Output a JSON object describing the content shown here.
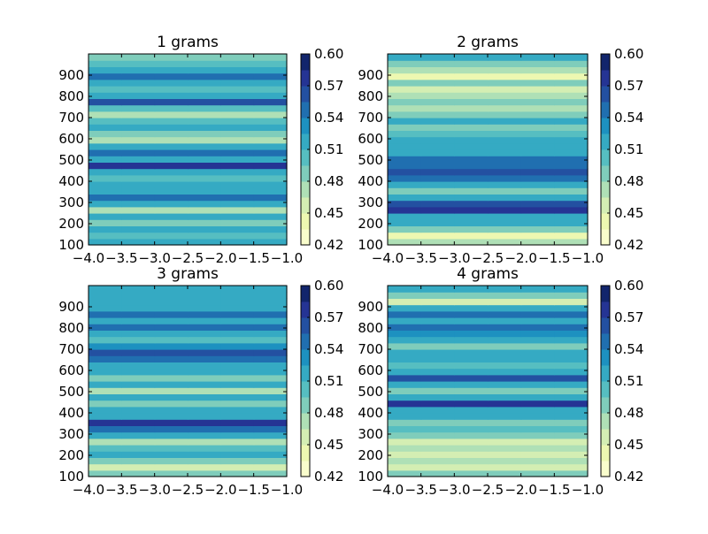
{
  "chart_data": [
    {
      "type": "heatmap",
      "title": "1 grams",
      "xlim": [
        -4.0,
        -1.0
      ],
      "ylim": [
        100,
        1000
      ],
      "xticks": [
        "−4.0",
        "−3.5",
        "−3.0",
        "−2.5",
        "−2.0",
        "−1.5",
        "−1.0"
      ],
      "yticks": [
        "100",
        "200",
        "300",
        "400",
        "500",
        "600",
        "700",
        "800",
        "900"
      ],
      "colorbar_ticks": [
        "0.42",
        "0.45",
        "0.48",
        "0.51",
        "0.54",
        "0.57",
        "0.60"
      ],
      "colorbar_range": [
        0.42,
        0.6
      ],
      "colormap": "YlGnBu",
      "x_columns": [
        -4.0,
        -3.5,
        -3.0,
        -2.5,
        -2.0,
        -1.5
      ],
      "y_rows": [
        100,
        130,
        160,
        190,
        220,
        250,
        280,
        310,
        340,
        370,
        400,
        430,
        460,
        490,
        520,
        550,
        580,
        610,
        640,
        670,
        700,
        730,
        760,
        790,
        820,
        850,
        880,
        910,
        940,
        970
      ],
      "z": [
        [
          0.52,
          0.52,
          0.52,
          0.52,
          0.52,
          0.52
        ],
        [
          0.5,
          0.5,
          0.5,
          0.5,
          0.5,
          0.5
        ],
        [
          0.52,
          0.52,
          0.52,
          0.52,
          0.52,
          0.52
        ],
        [
          0.49,
          0.49,
          0.49,
          0.49,
          0.49,
          0.49
        ],
        [
          0.52,
          0.52,
          0.52,
          0.52,
          0.52,
          0.52
        ],
        [
          0.47,
          0.47,
          0.47,
          0.47,
          0.47,
          0.47
        ],
        [
          0.51,
          0.51,
          0.51,
          0.51,
          0.51,
          0.51
        ],
        [
          0.54,
          0.54,
          0.54,
          0.54,
          0.54,
          0.54
        ],
        [
          0.51,
          0.51,
          0.51,
          0.51,
          0.51,
          0.51
        ],
        [
          0.52,
          0.52,
          0.52,
          0.52,
          0.52,
          0.52
        ],
        [
          0.5,
          0.5,
          0.5,
          0.5,
          0.5,
          0.5
        ],
        [
          0.52,
          0.52,
          0.52,
          0.52,
          0.52,
          0.52
        ],
        [
          0.58,
          0.58,
          0.58,
          0.58,
          0.58,
          0.58
        ],
        [
          0.52,
          0.52,
          0.52,
          0.52,
          0.52,
          0.52
        ],
        [
          0.54,
          0.54,
          0.54,
          0.54,
          0.54,
          0.54
        ],
        [
          0.52,
          0.52,
          0.52,
          0.52,
          0.52,
          0.52
        ],
        [
          0.47,
          0.47,
          0.47,
          0.47,
          0.47,
          0.47
        ],
        [
          0.49,
          0.49,
          0.49,
          0.49,
          0.49,
          0.49
        ],
        [
          0.52,
          0.52,
          0.52,
          0.52,
          0.52,
          0.52
        ],
        [
          0.5,
          0.5,
          0.5,
          0.5,
          0.5,
          0.5
        ],
        [
          0.47,
          0.47,
          0.47,
          0.47,
          0.47,
          0.47
        ],
        [
          0.5,
          0.5,
          0.5,
          0.5,
          0.5,
          0.5
        ],
        [
          0.57,
          0.57,
          0.57,
          0.57,
          0.57,
          0.57
        ],
        [
          0.52,
          0.52,
          0.52,
          0.52,
          0.52,
          0.52
        ],
        [
          0.5,
          0.5,
          0.5,
          0.5,
          0.5,
          0.5
        ],
        [
          0.52,
          0.52,
          0.52,
          0.52,
          0.52,
          0.52
        ],
        [
          0.55,
          0.55,
          0.55,
          0.55,
          0.55,
          0.55
        ],
        [
          0.52,
          0.52,
          0.52,
          0.52,
          0.52,
          0.52
        ],
        [
          0.5,
          0.5,
          0.5,
          0.5,
          0.5,
          0.5
        ],
        [
          0.48,
          0.48,
          0.48,
          0.48,
          0.48,
          0.48
        ]
      ]
    },
    {
      "type": "heatmap",
      "title": "2 grams",
      "xlim": [
        -4.0,
        -1.0
      ],
      "ylim": [
        100,
        1000
      ],
      "xticks": [
        "−4.0",
        "−3.5",
        "−3.0",
        "−2.5",
        "−2.0",
        "−1.5",
        "−1.0"
      ],
      "yticks": [
        "100",
        "200",
        "300",
        "400",
        "500",
        "600",
        "700",
        "800",
        "900"
      ],
      "colorbar_ticks": [
        "0.42",
        "0.45",
        "0.48",
        "0.51",
        "0.54",
        "0.57",
        "0.60"
      ],
      "colorbar_range": [
        0.42,
        0.6
      ],
      "colormap": "YlGnBu",
      "x_columns": [
        -4.0,
        -3.5,
        -3.0,
        -2.5,
        -2.0,
        -1.5
      ],
      "y_rows": [
        100,
        130,
        160,
        190,
        220,
        250,
        280,
        310,
        340,
        370,
        400,
        430,
        460,
        490,
        520,
        550,
        580,
        610,
        640,
        670,
        700,
        730,
        760,
        790,
        820,
        850,
        880,
        910,
        940,
        970
      ],
      "z": [
        [
          0.47,
          0.47,
          0.47,
          0.47,
          0.47,
          0.47
        ],
        [
          0.44,
          0.44,
          0.44,
          0.44,
          0.44,
          0.44
        ],
        [
          0.48,
          0.48,
          0.48,
          0.48,
          0.48,
          0.48
        ],
        [
          0.51,
          0.51,
          0.51,
          0.51,
          0.51,
          0.51
        ],
        [
          0.52,
          0.52,
          0.52,
          0.52,
          0.52,
          0.52
        ],
        [
          0.58,
          0.58,
          0.58,
          0.58,
          0.58,
          0.58
        ],
        [
          0.56,
          0.56,
          0.56,
          0.56,
          0.56,
          0.56
        ],
        [
          0.52,
          0.52,
          0.52,
          0.52,
          0.52,
          0.52
        ],
        [
          0.49,
          0.49,
          0.49,
          0.49,
          0.49,
          0.49
        ],
        [
          0.52,
          0.52,
          0.52,
          0.52,
          0.52,
          0.52
        ],
        [
          0.54,
          0.54,
          0.54,
          0.54,
          0.54,
          0.54
        ],
        [
          0.56,
          0.56,
          0.56,
          0.56,
          0.56,
          0.56
        ],
        [
          0.54,
          0.54,
          0.54,
          0.54,
          0.54,
          0.54
        ],
        [
          0.55,
          0.55,
          0.55,
          0.55,
          0.55,
          0.55
        ],
        [
          0.52,
          0.52,
          0.52,
          0.52,
          0.52,
          0.52
        ],
        [
          0.51,
          0.51,
          0.51,
          0.51,
          0.51,
          0.51
        ],
        [
          0.52,
          0.52,
          0.52,
          0.52,
          0.52,
          0.52
        ],
        [
          0.5,
          0.5,
          0.5,
          0.5,
          0.5,
          0.5
        ],
        [
          0.48,
          0.48,
          0.48,
          0.48,
          0.48,
          0.48
        ],
        [
          0.51,
          0.51,
          0.51,
          0.51,
          0.51,
          0.51
        ],
        [
          0.49,
          0.49,
          0.49,
          0.49,
          0.49,
          0.49
        ],
        [
          0.47,
          0.47,
          0.47,
          0.47,
          0.47,
          0.47
        ],
        [
          0.49,
          0.49,
          0.49,
          0.49,
          0.49,
          0.49
        ],
        [
          0.47,
          0.47,
          0.47,
          0.47,
          0.47,
          0.47
        ],
        [
          0.45,
          0.45,
          0.45,
          0.45,
          0.45,
          0.45
        ],
        [
          0.48,
          0.48,
          0.48,
          0.48,
          0.48,
          0.48
        ],
        [
          0.44,
          0.44,
          0.44,
          0.44,
          0.44,
          0.44
        ],
        [
          0.47,
          0.47,
          0.47,
          0.47,
          0.47,
          0.47
        ],
        [
          0.49,
          0.49,
          0.49,
          0.49,
          0.49,
          0.49
        ],
        [
          0.51,
          0.51,
          0.51,
          0.51,
          0.51,
          0.51
        ]
      ]
    },
    {
      "type": "heatmap",
      "title": "3 grams",
      "xlim": [
        -4.0,
        -1.0
      ],
      "ylim": [
        100,
        1000
      ],
      "xticks": [
        "−4.0",
        "−3.5",
        "−3.0",
        "−2.5",
        "−2.0",
        "−1.5",
        "−1.0"
      ],
      "yticks": [
        "100",
        "200",
        "300",
        "400",
        "500",
        "600",
        "700",
        "800",
        "900"
      ],
      "colorbar_ticks": [
        "0.42",
        "0.45",
        "0.48",
        "0.51",
        "0.54",
        "0.57",
        "0.60"
      ],
      "colorbar_range": [
        0.42,
        0.6
      ],
      "colormap": "YlGnBu",
      "x_columns": [
        -4.0,
        -3.5,
        -3.0,
        -2.5,
        -2.0,
        -1.5
      ],
      "y_rows": [
        100,
        130,
        160,
        190,
        220,
        250,
        280,
        310,
        340,
        370,
        400,
        430,
        460,
        490,
        520,
        550,
        580,
        610,
        640,
        670,
        700,
        730,
        760,
        790,
        820,
        850,
        880,
        910,
        940,
        970
      ],
      "z": [
        [
          0.49,
          0.49,
          0.49,
          0.49,
          0.49,
          0.49
        ],
        [
          0.45,
          0.45,
          0.45,
          0.45,
          0.45,
          0.45
        ],
        [
          0.49,
          0.49,
          0.49,
          0.49,
          0.49,
          0.49
        ],
        [
          0.52,
          0.52,
          0.52,
          0.52,
          0.52,
          0.52
        ],
        [
          0.5,
          0.5,
          0.5,
          0.5,
          0.5,
          0.5
        ],
        [
          0.47,
          0.47,
          0.47,
          0.47,
          0.47,
          0.47
        ],
        [
          0.52,
          0.52,
          0.52,
          0.52,
          0.52,
          0.52
        ],
        [
          0.54,
          0.54,
          0.54,
          0.54,
          0.54,
          0.54
        ],
        [
          0.58,
          0.58,
          0.58,
          0.58,
          0.58,
          0.58
        ],
        [
          0.52,
          0.52,
          0.52,
          0.52,
          0.52,
          0.52
        ],
        [
          0.51,
          0.51,
          0.51,
          0.51,
          0.51,
          0.51
        ],
        [
          0.49,
          0.49,
          0.49,
          0.49,
          0.49,
          0.49
        ],
        [
          0.51,
          0.51,
          0.51,
          0.51,
          0.51,
          0.51
        ],
        [
          0.47,
          0.47,
          0.47,
          0.47,
          0.47,
          0.47
        ],
        [
          0.51,
          0.51,
          0.51,
          0.51,
          0.51,
          0.51
        ],
        [
          0.49,
          0.49,
          0.49,
          0.49,
          0.49,
          0.49
        ],
        [
          0.52,
          0.52,
          0.52,
          0.52,
          0.52,
          0.52
        ],
        [
          0.51,
          0.51,
          0.51,
          0.51,
          0.51,
          0.51
        ],
        [
          0.54,
          0.54,
          0.54,
          0.54,
          0.54,
          0.54
        ],
        [
          0.56,
          0.56,
          0.56,
          0.56,
          0.56,
          0.56
        ],
        [
          0.53,
          0.53,
          0.53,
          0.53,
          0.53,
          0.53
        ],
        [
          0.5,
          0.5,
          0.5,
          0.5,
          0.5,
          0.5
        ],
        [
          0.52,
          0.52,
          0.52,
          0.52,
          0.52,
          0.52
        ],
        [
          0.54,
          0.54,
          0.54,
          0.54,
          0.54,
          0.54
        ],
        [
          0.51,
          0.51,
          0.51,
          0.51,
          0.51,
          0.51
        ],
        [
          0.55,
          0.55,
          0.55,
          0.55,
          0.55,
          0.55
        ],
        [
          0.52,
          0.52,
          0.52,
          0.52,
          0.52,
          0.52
        ],
        [
          0.51,
          0.51,
          0.51,
          0.51,
          0.51,
          0.51
        ],
        [
          0.52,
          0.52,
          0.52,
          0.52,
          0.52,
          0.52
        ],
        [
          0.51,
          0.51,
          0.51,
          0.51,
          0.51,
          0.51
        ]
      ]
    },
    {
      "type": "heatmap",
      "title": "4 grams",
      "xlim": [
        -4.0,
        -1.0
      ],
      "ylim": [
        100,
        1000
      ],
      "xticks": [
        "−4.0",
        "−3.5",
        "−3.0",
        "−2.5",
        "−2.0",
        "−1.5",
        "−1.0"
      ],
      "yticks": [
        "100",
        "200",
        "300",
        "400",
        "500",
        "600",
        "700",
        "800",
        "900"
      ],
      "colorbar_ticks": [
        "0.42",
        "0.45",
        "0.48",
        "0.51",
        "0.54",
        "0.57",
        "0.60"
      ],
      "colorbar_range": [
        0.42,
        0.6
      ],
      "colormap": "YlGnBu",
      "x_columns": [
        -4.0,
        -3.5,
        -3.0,
        -2.5,
        -2.0,
        -1.5
      ],
      "y_rows": [
        100,
        130,
        160,
        190,
        220,
        250,
        280,
        310,
        340,
        370,
        400,
        430,
        460,
        490,
        520,
        550,
        580,
        610,
        640,
        670,
        700,
        730,
        760,
        790,
        820,
        850,
        880,
        910,
        940,
        970
      ],
      "z": [
        [
          0.48,
          0.48,
          0.48,
          0.48,
          0.48,
          0.48
        ],
        [
          0.46,
          0.46,
          0.46,
          0.46,
          0.46,
          0.46
        ],
        [
          0.47,
          0.47,
          0.47,
          0.47,
          0.47,
          0.47
        ],
        [
          0.45,
          0.45,
          0.45,
          0.45,
          0.45,
          0.45
        ],
        [
          0.47,
          0.47,
          0.47,
          0.47,
          0.47,
          0.47
        ],
        [
          0.46,
          0.46,
          0.46,
          0.46,
          0.46,
          0.46
        ],
        [
          0.48,
          0.48,
          0.48,
          0.48,
          0.48,
          0.48
        ],
        [
          0.5,
          0.5,
          0.5,
          0.5,
          0.5,
          0.5
        ],
        [
          0.48,
          0.48,
          0.48,
          0.48,
          0.48,
          0.48
        ],
        [
          0.51,
          0.51,
          0.51,
          0.51,
          0.51,
          0.51
        ],
        [
          0.52,
          0.52,
          0.52,
          0.52,
          0.52,
          0.52
        ],
        [
          0.58,
          0.58,
          0.58,
          0.58,
          0.58,
          0.58
        ],
        [
          0.51,
          0.51,
          0.51,
          0.51,
          0.51,
          0.51
        ],
        [
          0.49,
          0.49,
          0.49,
          0.49,
          0.49,
          0.49
        ],
        [
          0.51,
          0.51,
          0.51,
          0.51,
          0.51,
          0.51
        ],
        [
          0.57,
          0.57,
          0.57,
          0.57,
          0.57,
          0.57
        ],
        [
          0.52,
          0.52,
          0.52,
          0.52,
          0.52,
          0.52
        ],
        [
          0.5,
          0.5,
          0.5,
          0.5,
          0.5,
          0.5
        ],
        [
          0.52,
          0.52,
          0.52,
          0.52,
          0.52,
          0.52
        ],
        [
          0.51,
          0.51,
          0.51,
          0.51,
          0.51,
          0.51
        ],
        [
          0.49,
          0.49,
          0.49,
          0.49,
          0.49,
          0.49
        ],
        [
          0.52,
          0.52,
          0.52,
          0.52,
          0.52,
          0.52
        ],
        [
          0.53,
          0.53,
          0.53,
          0.53,
          0.53,
          0.53
        ],
        [
          0.54,
          0.54,
          0.54,
          0.54,
          0.54,
          0.54
        ],
        [
          0.52,
          0.52,
          0.52,
          0.52,
          0.52,
          0.52
        ],
        [
          0.54,
          0.54,
          0.54,
          0.54,
          0.54,
          0.54
        ],
        [
          0.52,
          0.52,
          0.52,
          0.52,
          0.52,
          0.52
        ],
        [
          0.46,
          0.46,
          0.46,
          0.46,
          0.46,
          0.46
        ],
        [
          0.49,
          0.49,
          0.49,
          0.49,
          0.49,
          0.49
        ],
        [
          0.51,
          0.51,
          0.51,
          0.51,
          0.51,
          0.51
        ]
      ]
    }
  ]
}
